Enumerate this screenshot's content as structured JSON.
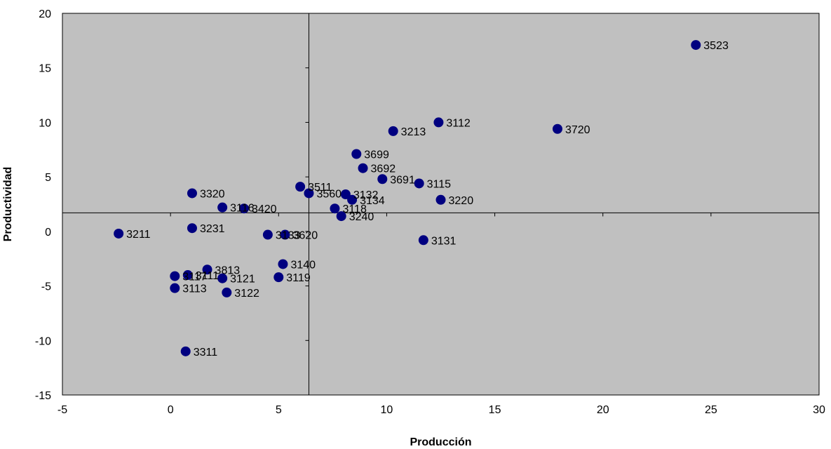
{
  "chart_data": {
    "type": "scatter",
    "xlabel": "Producción",
    "ylabel": "Productividad",
    "xlim": [
      -5,
      30
    ],
    "ylim": [
      -15,
      20
    ],
    "x_ticks": [
      -5,
      0,
      5,
      10,
      15,
      20,
      25,
      30
    ],
    "y_ticks": [
      -15,
      -10,
      -5,
      0,
      5,
      10,
      15,
      20
    ],
    "crosshair": {
      "x": 6.4,
      "y": 1.7
    },
    "grid": false,
    "legend": "none",
    "colors": {
      "plot_background": "#c0c0c0",
      "marker": "#000080",
      "axis": "#000000"
    },
    "points": [
      {
        "label": "3523",
        "x": 24.3,
        "y": 17.1
      },
      {
        "label": "3720",
        "x": 17.9,
        "y": 9.4
      },
      {
        "label": "3112",
        "x": 12.4,
        "y": 10.0
      },
      {
        "label": "3213",
        "x": 10.3,
        "y": 9.2
      },
      {
        "label": "3699",
        "x": 8.6,
        "y": 7.1
      },
      {
        "label": "3692",
        "x": 8.9,
        "y": 5.8
      },
      {
        "label": "3691",
        "x": 9.8,
        "y": 4.8
      },
      {
        "label": "3115",
        "x": 11.5,
        "y": 4.4
      },
      {
        "label": "3220",
        "x": 12.5,
        "y": 2.9
      },
      {
        "label": "3511",
        "x": 6.0,
        "y": 4.1
      },
      {
        "label": "3560",
        "x": 6.4,
        "y": 3.5
      },
      {
        "label": "3132",
        "x": 8.1,
        "y": 3.4
      },
      {
        "label": "3134",
        "x": 8.4,
        "y": 2.9
      },
      {
        "label": "3118",
        "x": 7.6,
        "y": 2.1
      },
      {
        "label": "3240",
        "x": 7.9,
        "y": 1.4
      },
      {
        "label": "3320",
        "x": 1.0,
        "y": 3.5
      },
      {
        "label": "3116",
        "x": 2.4,
        "y": 2.2
      },
      {
        "label": "3420",
        "x": 3.4,
        "y": 2.1
      },
      {
        "label": "3211",
        "x": -2.4,
        "y": -0.2
      },
      {
        "label": "3231",
        "x": 1.0,
        "y": 0.3
      },
      {
        "label": "3133",
        "x": 4.5,
        "y": -0.3
      },
      {
        "label": "3620",
        "x": 5.3,
        "y": -0.3
      },
      {
        "label": "3131",
        "x": 11.7,
        "y": -0.8
      },
      {
        "label": "3140",
        "x": 5.2,
        "y": -3.0
      },
      {
        "label": "3119",
        "x": 5.0,
        "y": -4.2
      },
      {
        "label": "3813",
        "x": 1.7,
        "y": -3.5
      },
      {
        "label": "3111",
        "x": 0.8,
        "y": -4.0
      },
      {
        "label": "3117",
        "x": 0.2,
        "y": -4.1
      },
      {
        "label": "3121",
        "x": 2.4,
        "y": -4.3
      },
      {
        "label": "3113",
        "x": 0.2,
        "y": -5.2
      },
      {
        "label": "3122",
        "x": 2.6,
        "y": -5.6
      },
      {
        "label": "3311",
        "x": 0.7,
        "y": -11.0
      }
    ]
  }
}
